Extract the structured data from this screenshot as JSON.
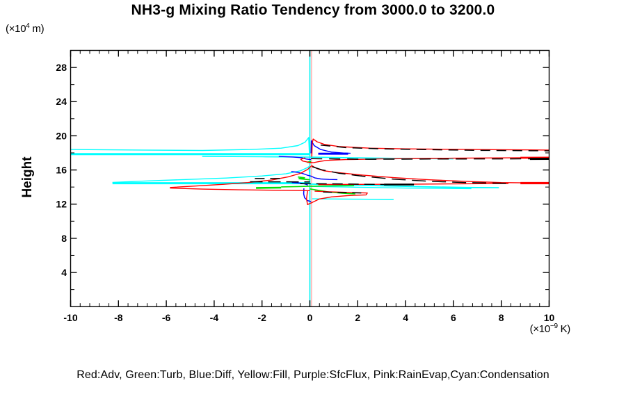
{
  "chart_data": {
    "type": "line",
    "title": "NH3-g Mixing Ratio Tendency from 3000.0 to 3200.0",
    "ylabel": "Height",
    "y_unit": {
      "prefix": "(×10",
      "exp": "4",
      "suffix": " m)"
    },
    "x_unit": {
      "prefix": "(×10",
      "exp": "−9",
      "suffix": " K)"
    },
    "legend": "Red:Adv, Green:Turb, Blue:Diff, Yellow:Fill, Purple:SfcFlux, Pink:RainEvap,Cyan:Condensation",
    "xlim": [
      -10,
      10
    ],
    "ylim": [
      0,
      30
    ],
    "xticks": [
      -10,
      -8,
      -6,
      -4,
      -2,
      0,
      2,
      4,
      6,
      8,
      10
    ],
    "yticks": [
      4,
      8,
      12,
      16,
      20,
      24,
      28
    ],
    "x_minor_step": 0.4,
    "y_minor_step": 2,
    "grid": false,
    "legend_position": "bottom",
    "series_colors": {
      "red_adv": "#ff0000",
      "green_turb": "#00e000",
      "blue_diff": "#0000ff",
      "yellow_fill": "#ffff00",
      "purple_sfcflux": "#a000c8",
      "pink_rainevap": "#ff9e9e",
      "cyan_condensation": "#00ffff",
      "black_total": "#000000"
    },
    "series": [
      {
        "name": "fill-yellow-zero",
        "color": "#ffff00",
        "lw": 1.2,
        "points": [
          [
            0,
            0
          ],
          [
            0,
            30
          ]
        ]
      },
      {
        "name": "sfcflux-purple-zero",
        "color": "#a000c8",
        "lw": 1.2,
        "points": [
          [
            0,
            0
          ],
          [
            0,
            30
          ]
        ]
      },
      {
        "name": "condensation-zero-line",
        "color": "#00ffff",
        "lw": 1.6,
        "points": [
          [
            0,
            0
          ],
          [
            0,
            30
          ]
        ]
      },
      {
        "name": "rainevap-pink-zero",
        "color": "#ff9e9e",
        "lw": 1.2,
        "points": [
          [
            0.07,
            0
          ],
          [
            0.07,
            30
          ]
        ]
      },
      {
        "name": "cond-upper-curve",
        "color": "#00ffff",
        "lw": 1.4,
        "points": [
          [
            -10,
            18.4
          ],
          [
            -7,
            18.33
          ],
          [
            -4.5,
            18.28
          ],
          [
            -2.5,
            18.4
          ],
          [
            -1.2,
            18.55
          ],
          [
            -0.5,
            18.85
          ],
          [
            -0.2,
            19.25
          ],
          [
            -0.05,
            19.8
          ],
          [
            -0.02,
            17.95
          ]
        ]
      },
      {
        "name": "cond-upper-spike",
        "color": "#00ffff",
        "lw": 3,
        "points": [
          [
            -10,
            17.85
          ],
          [
            0,
            17.85
          ]
        ]
      },
      {
        "name": "cond-upper-right",
        "color": "#00ffff",
        "lw": 1.6,
        "points": [
          [
            -4.5,
            17.6
          ],
          [
            -2,
            17.55
          ],
          [
            0,
            17.5
          ],
          [
            2,
            17.42
          ],
          [
            4,
            17.35
          ],
          [
            6,
            17.3
          ]
        ]
      },
      {
        "name": "cond-mid-curve",
        "color": "#00ffff",
        "lw": 1.4,
        "points": [
          [
            -8.25,
            14.55
          ],
          [
            -6.5,
            14.75
          ],
          [
            -5,
            14.9
          ],
          [
            -3.5,
            15.05
          ],
          [
            -2,
            15.3
          ],
          [
            -1,
            15.55
          ],
          [
            -0.4,
            15.9
          ],
          [
            -0.12,
            16.25
          ],
          [
            -0.04,
            16.38
          ],
          [
            0,
            15.0
          ]
        ]
      },
      {
        "name": "cond-mid-spike",
        "color": "#00ffff",
        "lw": 3,
        "points": [
          [
            -8.25,
            14.45
          ],
          [
            0,
            14.45
          ]
        ]
      },
      {
        "name": "cond-mid-right1",
        "color": "#00ffff",
        "lw": 1.8,
        "points": [
          [
            0,
            14.35
          ],
          [
            1.5,
            14.25
          ],
          [
            3,
            14.15
          ],
          [
            5,
            14.02
          ],
          [
            6.5,
            13.95
          ],
          [
            7.9,
            13.92
          ]
        ]
      },
      {
        "name": "cond-mid-right2",
        "color": "#00ffff",
        "lw": 1.4,
        "points": [
          [
            0,
            14.08
          ],
          [
            2,
            13.98
          ],
          [
            4,
            13.88
          ],
          [
            6.75,
            13.82
          ]
        ]
      },
      {
        "name": "cond-low-right",
        "color": "#00ffff",
        "lw": 1.4,
        "points": [
          [
            0.1,
            12.62
          ],
          [
            2,
            12.58
          ],
          [
            3.5,
            12.55
          ]
        ]
      },
      {
        "name": "turb-upper-tiny",
        "color": "#00e000",
        "lw": 1.6,
        "points": [
          [
            0.05,
            17.0
          ],
          [
            -0.12,
            16.92
          ],
          [
            0.05,
            16.84
          ]
        ]
      },
      {
        "name": "turb-mid-left",
        "color": "#00e000",
        "lw": 1.8,
        "points": [
          [
            -0.5,
            15.18
          ],
          [
            -0.22,
            15.08
          ],
          [
            -0.45,
            14.98
          ],
          [
            -0.15,
            14.9
          ],
          [
            0,
            14.86
          ]
        ]
      },
      {
        "name": "turb-left-band",
        "color": "#00e000",
        "lw": 2.6,
        "points": [
          [
            -2.25,
            13.9
          ],
          [
            -1.2,
            13.93
          ]
        ]
      },
      {
        "name": "turb-left-band2",
        "color": "#00e000",
        "lw": 1.6,
        "points": [
          [
            -1.2,
            14.02
          ],
          [
            -0.5,
            14.06
          ],
          [
            0,
            14.1
          ],
          [
            0.9,
            14.13
          ],
          [
            1.85,
            14.16
          ]
        ]
      },
      {
        "name": "turb-low-right",
        "color": "#00e000",
        "lw": 1.6,
        "points": [
          [
            0,
            13.78
          ],
          [
            0.35,
            13.62
          ],
          [
            0.8,
            13.42
          ],
          [
            1.35,
            13.28
          ],
          [
            1.9,
            13.2
          ]
        ]
      },
      {
        "name": "diff-upper-peak",
        "color": "#0000ff",
        "lw": 1.4,
        "points": [
          [
            0.05,
            17.95
          ],
          [
            0.06,
            19.42
          ],
          [
            0.18,
            18.85
          ],
          [
            0.45,
            18.4
          ],
          [
            0.9,
            18.1
          ],
          [
            1.4,
            17.98
          ],
          [
            1.7,
            17.95
          ]
        ]
      },
      {
        "name": "diff-upper-thick",
        "color": "#0000ff",
        "lw": 2.8,
        "points": [
          [
            0.35,
            17.9
          ],
          [
            1.6,
            17.9
          ]
        ]
      },
      {
        "name": "diff-upper-left",
        "color": "#0000ff",
        "lw": 1.4,
        "points": [
          [
            -1.3,
            17.58
          ],
          [
            -0.7,
            17.52
          ],
          [
            -0.35,
            17.44
          ],
          [
            -0.15,
            17.28
          ],
          [
            0.05,
            17.22
          ]
        ]
      },
      {
        "name": "diff-mid",
        "color": "#0000ff",
        "lw": 1.4,
        "points": [
          [
            -0.78,
            15.82
          ],
          [
            -0.5,
            15.72
          ],
          [
            -0.3,
            15.58
          ],
          [
            -0.12,
            15.4
          ],
          [
            0.05,
            15.28
          ],
          [
            0.2,
            15.08
          ],
          [
            0.45,
            14.95
          ],
          [
            0.8,
            14.89
          ],
          [
            1.15,
            14.87
          ]
        ]
      },
      {
        "name": "diff-mid-left2",
        "color": "#0000ff",
        "lw": 1.4,
        "points": [
          [
            -0.75,
            14.52
          ],
          [
            -0.4,
            14.46
          ],
          [
            -0.2,
            14.36
          ],
          [
            -0.08,
            14.22
          ]
        ]
      },
      {
        "name": "diff-low-vert",
        "color": "#0000ff",
        "lw": 1.5,
        "points": [
          [
            -0.25,
            13.85
          ],
          [
            -0.26,
            13.2
          ],
          [
            -0.22,
            12.75
          ],
          [
            -0.1,
            12.42
          ],
          [
            0.05,
            12.3
          ]
        ]
      },
      {
        "name": "adv-upper-peak",
        "color": "#ff0000",
        "lw": 1.4,
        "points": [
          [
            0.08,
            17.55
          ],
          [
            0.1,
            19.15
          ],
          [
            0.14,
            19.62
          ],
          [
            0.3,
            19.3
          ],
          [
            0.6,
            19.0
          ],
          [
            1.2,
            18.75
          ],
          [
            2.5,
            18.55
          ],
          [
            4,
            18.47
          ],
          [
            6,
            18.42
          ],
          [
            8,
            18.37
          ],
          [
            10,
            18.33
          ]
        ]
      },
      {
        "name": "adv-upper2",
        "color": "#ff0000",
        "lw": 1.4,
        "points": [
          [
            -0.2,
            17.42
          ],
          [
            -0.38,
            17.25
          ],
          [
            -0.3,
            17.05
          ],
          [
            -0.05,
            16.9
          ],
          [
            0.15,
            16.85
          ],
          [
            0.4,
            17.0
          ],
          [
            0.7,
            17.12
          ],
          [
            1.5,
            17.22
          ],
          [
            3,
            17.3
          ],
          [
            6,
            17.38
          ],
          [
            8.5,
            17.42
          ],
          [
            10,
            17.44
          ]
        ]
      },
      {
        "name": "adv-upper2-end",
        "color": "#ff0000",
        "lw": 2.8,
        "points": [
          [
            8.8,
            17.43
          ],
          [
            10,
            17.44
          ]
        ]
      },
      {
        "name": "adv-mid-low-branch",
        "color": "#ff0000",
        "lw": 1.4,
        "points": [
          [
            -5.85,
            13.88
          ],
          [
            -4.5,
            13.76
          ],
          [
            -3,
            13.68
          ],
          [
            -1.5,
            13.63
          ],
          [
            0,
            13.58
          ]
        ]
      },
      {
        "name": "adv-mid-peak",
        "color": "#ff0000",
        "lw": 1.4,
        "points": [
          [
            -5.85,
            13.95
          ],
          [
            -4.8,
            14.12
          ],
          [
            -3.6,
            14.32
          ],
          [
            -2.6,
            14.52
          ],
          [
            -1.6,
            14.82
          ],
          [
            -0.9,
            15.2
          ],
          [
            -0.4,
            15.6
          ],
          [
            -0.1,
            16.05
          ],
          [
            0.08,
            16.5
          ],
          [
            0.3,
            16.15
          ],
          [
            0.6,
            15.9
          ],
          [
            1.2,
            15.68
          ],
          [
            2.2,
            15.4
          ],
          [
            3.5,
            15.1
          ],
          [
            5,
            14.85
          ],
          [
            6.5,
            14.67
          ],
          [
            8,
            14.52
          ],
          [
            10,
            14.46
          ]
        ]
      },
      {
        "name": "adv-mid-end-thick",
        "color": "#ff0000",
        "lw": 3.2,
        "points": [
          [
            8.8,
            14.46
          ],
          [
            10,
            14.46
          ]
        ]
      },
      {
        "name": "adv-mid2",
        "color": "#ff0000",
        "lw": 1.4,
        "points": [
          [
            0.35,
            14.3
          ],
          [
            2,
            14.31
          ],
          [
            4,
            14.33
          ],
          [
            6,
            14.37
          ],
          [
            8.3,
            14.42
          ]
        ]
      },
      {
        "name": "adv-low-dip",
        "color": "#ff0000",
        "lw": 1.4,
        "points": [
          [
            -0.1,
            13.55
          ],
          [
            -0.14,
            12.6
          ],
          [
            -0.1,
            11.95
          ],
          [
            0.1,
            12.2
          ],
          [
            0.4,
            12.6
          ],
          [
            0.9,
            12.85
          ],
          [
            1.6,
            13.0
          ],
          [
            2.35,
            13.08
          ],
          [
            2.4,
            13.3
          ],
          [
            1.6,
            13.38
          ],
          [
            0.8,
            13.45
          ],
          [
            0.2,
            13.52
          ]
        ]
      },
      {
        "name": "total-upper-dash",
        "color": "#000000",
        "lw": 1.5,
        "dash": "14 9",
        "points": [
          [
            0.45,
            18.92
          ],
          [
            1.5,
            18.62
          ],
          [
            3,
            18.47
          ],
          [
            5,
            18.38
          ],
          [
            7,
            18.3
          ],
          [
            10,
            18.24
          ]
        ]
      },
      {
        "name": "total-upper2-dash",
        "color": "#000000",
        "lw": 1.5,
        "dash": "16 10",
        "points": [
          [
            0.05,
            17.32
          ],
          [
            2.5,
            17.26
          ],
          [
            5,
            17.28
          ],
          [
            8,
            17.3
          ],
          [
            10,
            17.31
          ]
        ]
      },
      {
        "name": "total-upper2-end",
        "color": "#000000",
        "lw": 3,
        "points": [
          [
            9.2,
            17.3
          ],
          [
            10,
            17.31
          ]
        ]
      },
      {
        "name": "total-mid-left-dash",
        "color": "#000000",
        "lw": 1.5,
        "dash": "14 8",
        "points": [
          [
            -2.3,
            15.0
          ],
          [
            -1.2,
            15.0
          ]
        ]
      },
      {
        "name": "total-mid-left2",
        "color": "#000000",
        "lw": 1.5,
        "dash": "18 8",
        "points": [
          [
            -2.5,
            14.62
          ],
          [
            0,
            14.6
          ]
        ]
      },
      {
        "name": "total-mid-decay",
        "color": "#000000",
        "lw": 1.5,
        "dash": "20 9",
        "points": [
          [
            0.1,
            16.38
          ],
          [
            0.5,
            16.02
          ],
          [
            1.2,
            15.62
          ],
          [
            2.2,
            15.27
          ],
          [
            3.5,
            14.92
          ],
          [
            5,
            14.68
          ],
          [
            6.5,
            14.52
          ],
          [
            8.2,
            14.44
          ]
        ]
      },
      {
        "name": "total-mid2-dash",
        "color": "#000000",
        "lw": 1.5,
        "dash": "15 8",
        "points": [
          [
            -0.4,
            14.4
          ],
          [
            1.5,
            14.36
          ],
          [
            3.1,
            14.3
          ]
        ]
      },
      {
        "name": "total-mid2-thick",
        "color": "#000000",
        "lw": 2.6,
        "points": [
          [
            3.1,
            14.3
          ],
          [
            4.35,
            14.3
          ]
        ]
      },
      {
        "name": "total-low-dash",
        "color": "#000000",
        "lw": 1.5,
        "dash": "13 8",
        "points": [
          [
            0.55,
            13.42
          ],
          [
            1.3,
            13.35
          ],
          [
            2.3,
            13.3
          ]
        ]
      }
    ]
  }
}
